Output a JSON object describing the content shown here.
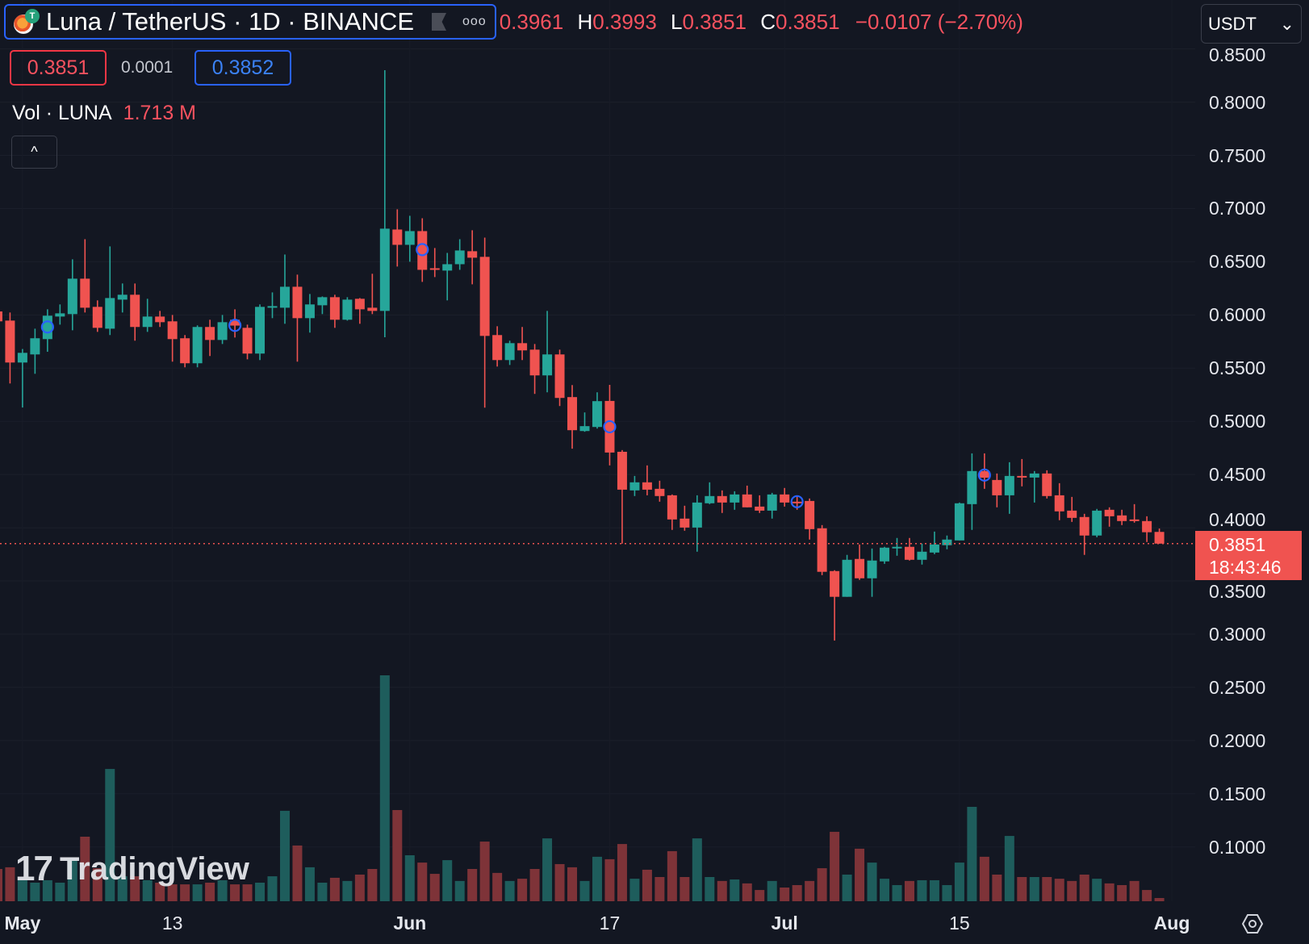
{
  "header": {
    "symbol_title": "Luna / TetherUS · 1D · BINANCE",
    "more_label": "ooo",
    "open": "0.3961",
    "high_key": "H",
    "high": "0.3993",
    "low_key": "L",
    "low": "0.3851",
    "close_key": "C",
    "close": "0.3851",
    "change": "−0.0107 (−2.70%)"
  },
  "currency": {
    "selected": "USDT",
    "chevron": "⌄"
  },
  "quote": {
    "bid": "0.3851",
    "spread": "0.0001",
    "ask": "0.3852"
  },
  "volume_legend": {
    "label": "Vol · LUNA",
    "value": "1.713 M"
  },
  "collapse_glyph": "^",
  "last_price": {
    "price": "0.3851",
    "countdown": "18:43:46"
  },
  "watermark": {
    "text": "TradingView",
    "mark": "17"
  },
  "colors": {
    "background": "#131722",
    "up": "#26a69a",
    "down": "#f05350",
    "volume_up": "#1e5d5c",
    "volume_down": "#7e3338",
    "marker": "#2962ff"
  },
  "chart_data": {
    "type": "candlestick",
    "interval": "1D",
    "ylim": [
      0.049,
      0.896
    ],
    "grid": true,
    "y_ticks": [
      "0.8500",
      "0.8000",
      "0.7500",
      "0.7000",
      "0.6500",
      "0.6000",
      "0.5500",
      "0.5000",
      "0.4500",
      "0.4000",
      "0.3500",
      "0.3000",
      "0.2500",
      "0.2000",
      "0.1500",
      "0.1000"
    ],
    "x_ticks": [
      {
        "label": "May",
        "date": "May 1",
        "bold": true
      },
      {
        "label": "13",
        "date": "May 13",
        "bold": false
      },
      {
        "label": "Jun",
        "date": "Jun 1",
        "bold": true
      },
      {
        "label": "17",
        "date": "Jun 17",
        "bold": false
      },
      {
        "label": "Jul",
        "date": "Jul 1",
        "bold": true
      },
      {
        "label": "15",
        "date": "Jul 15",
        "bold": false
      },
      {
        "label": "Aug",
        "date": "Aug 1",
        "bold": true
      }
    ],
    "last_price_line": 0.3851,
    "columns": [
      "date",
      "open",
      "high",
      "low",
      "close",
      "volume_M"
    ],
    "rows": [
      [
        "Apr 29",
        0.6033,
        0.606,
        0.59,
        0.594,
        17.2
      ],
      [
        "Apr 30",
        0.5947,
        0.6023,
        0.5356,
        0.5553,
        18.1
      ],
      [
        "May 1",
        0.5553,
        0.568,
        0.513,
        0.5644,
        11.2
      ],
      [
        "May 2",
        0.5629,
        0.5871,
        0.5447,
        0.5781,
        9.9
      ],
      [
        "May 3",
        0.5773,
        0.6053,
        0.5654,
        0.5993,
        11.2
      ],
      [
        "May 4",
        0.5985,
        0.6099,
        0.5909,
        0.6015,
        9.9
      ],
      [
        "May 5",
        0.6008,
        0.6523,
        0.5856,
        0.6341,
        22.4
      ],
      [
        "May 6",
        0.6341,
        0.6712,
        0.6023,
        0.6068,
        34.4
      ],
      [
        "May 7",
        0.6076,
        0.6137,
        0.5841,
        0.5879,
        17.6
      ],
      [
        "May 8",
        0.5871,
        0.6644,
        0.5811,
        0.6159,
        70.5
      ],
      [
        "May 9",
        0.6144,
        0.6296,
        0.6023,
        0.619,
        13.3
      ],
      [
        "May 10",
        0.619,
        0.6296,
        0.5758,
        0.5887,
        13.3
      ],
      [
        "May 11",
        0.5887,
        0.6152,
        0.5841,
        0.5985,
        11.2
      ],
      [
        "May 12",
        0.5985,
        0.6038,
        0.5887,
        0.5932,
        9.9
      ],
      [
        "May 13",
        0.594,
        0.6,
        0.5561,
        0.5773,
        9.0
      ],
      [
        "May 14",
        0.5781,
        0.5811,
        0.5508,
        0.5546,
        9.0
      ],
      [
        "May 15",
        0.5546,
        0.5902,
        0.5508,
        0.5887,
        9.0
      ],
      [
        "May 16",
        0.5887,
        0.5955,
        0.5614,
        0.5765,
        9.9
      ],
      [
        "May 17",
        0.5765,
        0.6,
        0.5727,
        0.5932,
        11.2
      ],
      [
        "May 18",
        0.5955,
        0.6053,
        0.5788,
        0.59,
        9.0
      ],
      [
        "May 19",
        0.5879,
        0.5909,
        0.5583,
        0.5637,
        9.0
      ],
      [
        "May 20",
        0.5637,
        0.6099,
        0.5576,
        0.6076,
        9.9
      ],
      [
        "May 21",
        0.6068,
        0.6212,
        0.597,
        0.6083,
        13.3
      ],
      [
        "May 22",
        0.6068,
        0.6568,
        0.5917,
        0.6265,
        48.2
      ],
      [
        "May 23",
        0.6265,
        0.6379,
        0.5561,
        0.597,
        29.7
      ],
      [
        "May 24",
        0.597,
        0.6197,
        0.5834,
        0.6099,
        18.1
      ],
      [
        "May 25",
        0.6091,
        0.6174,
        0.6008,
        0.6167,
        9.9
      ],
      [
        "May 26",
        0.6167,
        0.619,
        0.5879,
        0.5955,
        12.5
      ],
      [
        "May 27",
        0.5955,
        0.6167,
        0.5947,
        0.6144,
        10.8
      ],
      [
        "May 28",
        0.6152,
        0.6159,
        0.5917,
        0.6053,
        14.2
      ],
      [
        "May 29",
        0.6068,
        0.6387,
        0.6008,
        0.6038,
        17.2
      ],
      [
        "May 30",
        0.6038,
        0.83,
        0.579,
        0.6811,
        120.4
      ],
      [
        "May 31",
        0.6803,
        0.6993,
        0.6455,
        0.6659,
        48.6
      ],
      [
        "Jun 1",
        0.6659,
        0.6932,
        0.65,
        0.6788,
        24.5
      ],
      [
        "Jun 2",
        0.6788,
        0.6909,
        0.6311,
        0.6424,
        20.6
      ],
      [
        "Jun 3",
        0.6439,
        0.6629,
        0.6356,
        0.6424,
        14.6
      ],
      [
        "Jun 4",
        0.6417,
        0.6583,
        0.6137,
        0.6477,
        21.9
      ],
      [
        "Jun 5",
        0.6477,
        0.6712,
        0.6424,
        0.6606,
        10.8
      ],
      [
        "Jun 6",
        0.6599,
        0.6796,
        0.6288,
        0.6538,
        17.2
      ],
      [
        "Jun 7",
        0.6546,
        0.6727,
        0.5129,
        0.5803,
        31.8
      ],
      [
        "Jun 8",
        0.5811,
        0.5894,
        0.5515,
        0.5576,
        15.1
      ],
      [
        "Jun 9",
        0.5576,
        0.5758,
        0.553,
        0.5735,
        10.8
      ],
      [
        "Jun 10",
        0.5735,
        0.5887,
        0.5576,
        0.5667,
        12.0
      ],
      [
        "Jun 11",
        0.5674,
        0.5727,
        0.5258,
        0.5432,
        17.2
      ],
      [
        "Jun 12",
        0.5432,
        0.6038,
        0.5273,
        0.5629,
        33.5
      ],
      [
        "Jun 13",
        0.5629,
        0.5674,
        0.5144,
        0.522,
        19.8
      ],
      [
        "Jun 14",
        0.5228,
        0.5341,
        0.4743,
        0.4917,
        18.1
      ],
      [
        "Jun 15",
        0.4909,
        0.5084,
        0.4902,
        0.4955,
        10.8
      ],
      [
        "Jun 16",
        0.4947,
        0.5273,
        0.4932,
        0.519,
        23.7
      ],
      [
        "Jun 17",
        0.5192,
        0.5343,
        0.4586,
        0.4707,
        22.4
      ],
      [
        "Jun 18",
        0.4714,
        0.473,
        0.3851,
        0.4358,
        30.5
      ],
      [
        "Jun 19",
        0.4351,
        0.4487,
        0.4298,
        0.4427,
        12.0
      ],
      [
        "Jun 20",
        0.4427,
        0.4586,
        0.4305,
        0.4358,
        16.8
      ],
      [
        "Jun 21",
        0.4366,
        0.4442,
        0.4245,
        0.4298,
        12.9
      ],
      [
        "Jun 22",
        0.4305,
        0.4313,
        0.398,
        0.4078,
        26.7
      ],
      [
        "Jun 23",
        0.4086,
        0.4207,
        0.3972,
        0.4002,
        12.9
      ],
      [
        "Jun 24",
        0.4002,
        0.4305,
        0.3775,
        0.4237,
        33.5
      ],
      [
        "Jun 25",
        0.423,
        0.4427,
        0.4222,
        0.4298,
        12.9
      ],
      [
        "Jun 26",
        0.4298,
        0.4351,
        0.4139,
        0.4237,
        10.8
      ],
      [
        "Jun 27",
        0.4237,
        0.4343,
        0.4169,
        0.4313,
        11.6
      ],
      [
        "Jun 28",
        0.4313,
        0.4396,
        0.4192,
        0.4192,
        9.5
      ],
      [
        "Jun 29",
        0.4199,
        0.4305,
        0.4139,
        0.4161,
        6.0
      ],
      [
        "Jun 30",
        0.4161,
        0.4328,
        0.4086,
        0.4313,
        10.8
      ],
      [
        "Jul 1",
        0.4313,
        0.4374,
        0.4199,
        0.4237,
        7.3
      ],
      [
        "Jul 2",
        0.4245,
        0.429,
        0.4169,
        0.423,
        8.6
      ],
      [
        "Jul 3",
        0.4252,
        0.4275,
        0.3889,
        0.3987,
        10.8
      ],
      [
        "Jul 4",
        0.3995,
        0.4025,
        0.3555,
        0.3586,
        17.6
      ],
      [
        "Jul 5",
        0.3593,
        0.3601,
        0.294,
        0.3351,
        37.0
      ],
      [
        "Jul 6",
        0.3351,
        0.3745,
        0.3351,
        0.3699,
        14.2
      ],
      [
        "Jul 7",
        0.3707,
        0.3843,
        0.351,
        0.3525,
        28.0
      ],
      [
        "Jul 8",
        0.3525,
        0.3805,
        0.3351,
        0.3692,
        20.6
      ],
      [
        "Jul 9",
        0.3684,
        0.3821,
        0.3661,
        0.3813,
        12.0
      ],
      [
        "Jul 10",
        0.3808,
        0.3904,
        0.3737,
        0.3821,
        8.6
      ],
      [
        "Jul 11",
        0.3821,
        0.3904,
        0.3692,
        0.3699,
        10.8
      ],
      [
        "Jul 12",
        0.3699,
        0.3851,
        0.3654,
        0.3775,
        11.2
      ],
      [
        "Jul 13",
        0.3767,
        0.3964,
        0.3752,
        0.3843,
        11.2
      ],
      [
        "Jul 14",
        0.3836,
        0.3927,
        0.3798,
        0.3889,
        8.6
      ],
      [
        "Jul 15",
        0.3881,
        0.4237,
        0.3881,
        0.423,
        20.6
      ],
      [
        "Jul 16",
        0.4222,
        0.4699,
        0.398,
        0.4533,
        50.3
      ],
      [
        "Jul 17",
        0.4533,
        0.4699,
        0.4366,
        0.447,
        23.7
      ],
      [
        "Jul 18",
        0.4449,
        0.451,
        0.4192,
        0.4305,
        14.2
      ],
      [
        "Jul 19",
        0.4305,
        0.4616,
        0.4131,
        0.4487,
        34.8
      ],
      [
        "Jul 20",
        0.4487,
        0.4646,
        0.4389,
        0.4475,
        12.9
      ],
      [
        "Jul 21",
        0.4472,
        0.4533,
        0.4237,
        0.451,
        12.9
      ],
      [
        "Jul 22",
        0.451,
        0.454,
        0.4275,
        0.4298,
        12.9
      ],
      [
        "Jul 23",
        0.4305,
        0.4419,
        0.4071,
        0.4154,
        12.0
      ],
      [
        "Jul 24",
        0.4161,
        0.429,
        0.4055,
        0.4093,
        10.8
      ],
      [
        "Jul 25",
        0.4101,
        0.4131,
        0.3745,
        0.3927,
        14.2
      ],
      [
        "Jul 26",
        0.3927,
        0.4177,
        0.3911,
        0.4161,
        12.0
      ],
      [
        "Jul 27",
        0.4169,
        0.4192,
        0.401,
        0.4108,
        9.5
      ],
      [
        "Jul 28",
        0.4116,
        0.4169,
        0.4025,
        0.4063,
        8.6
      ],
      [
        "Jul 29",
        0.4078,
        0.4222,
        0.4048,
        0.4063,
        10.8
      ],
      [
        "Jul 30",
        0.4063,
        0.4108,
        0.3866,
        0.3958,
        6.0
      ],
      [
        "Jul 31",
        0.3961,
        0.3993,
        0.3851,
        0.3851,
        1.713
      ]
    ],
    "markers": [
      {
        "date": "May 3",
        "price": 0.5887
      },
      {
        "date": "May 18",
        "price": 0.5902
      },
      {
        "date": "Jun 2",
        "price": 0.6614
      },
      {
        "date": "Jun 17",
        "price": 0.4949
      },
      {
        "date": "Jul 2",
        "price": 0.4245
      },
      {
        "date": "Jul 17",
        "price": 0.4495
      }
    ]
  }
}
